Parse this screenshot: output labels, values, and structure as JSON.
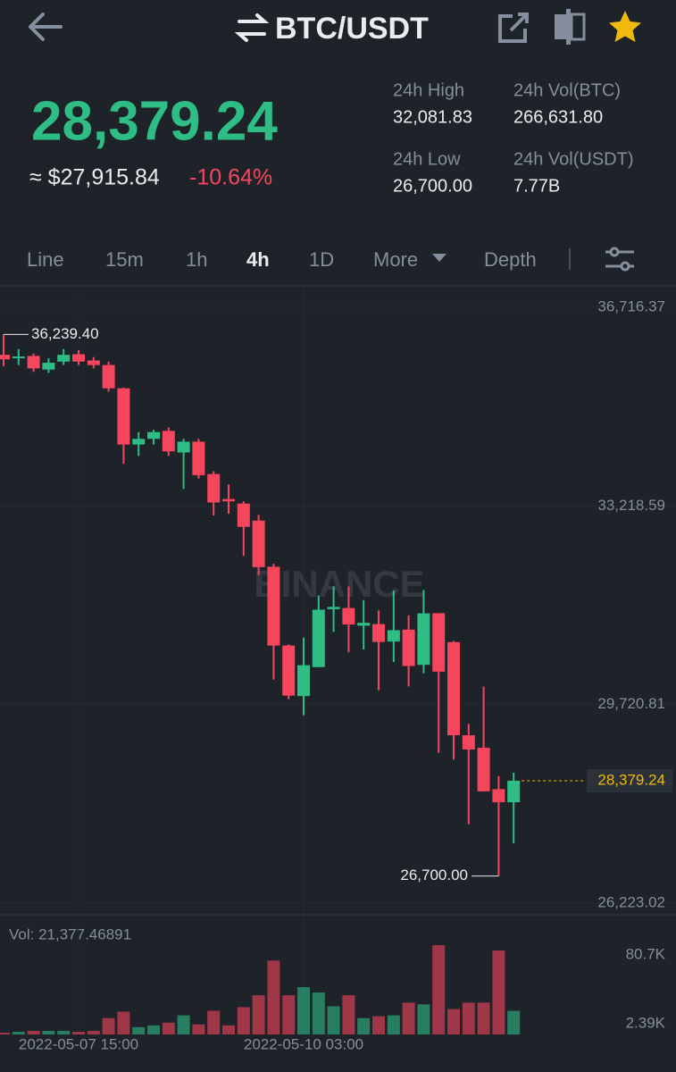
{
  "header": {
    "pair": "BTC/USDT"
  },
  "ticker": {
    "last_price": "28,379.24",
    "fiat_price": "≈ $27,915.84",
    "change": "-10.64%"
  },
  "stats": [
    {
      "label": "24h High",
      "value": "32,081.83"
    },
    {
      "label": "24h Vol(BTC)",
      "value": "266,631.80"
    },
    {
      "label": "24h Low",
      "value": "26,700.00"
    },
    {
      "label": "24h Vol(USDT)",
      "value": "7.77B"
    }
  ],
  "tabs": [
    "Line",
    "15m",
    "1h",
    "4h",
    "1D",
    "More",
    "Depth"
  ],
  "chart_data": {
    "type": "candlestick",
    "watermark": "BINANCE",
    "categories": [
      null,
      null,
      null,
      null,
      null,
      "2022-05-07 15:00",
      null,
      null,
      null,
      null,
      null,
      null,
      null,
      null,
      null,
      null,
      null,
      null,
      null,
      null,
      "2022-05-10 03:00",
      null,
      null,
      null,
      null,
      null,
      null,
      null,
      null,
      null,
      null,
      null,
      null,
      null,
      null
    ],
    "open": [
      35880,
      35820,
      35860,
      35620,
      35760,
      35890,
      35780,
      35700,
      35290,
      34300,
      34400,
      34540,
      34160,
      34350,
      33780,
      33340,
      33260,
      32960,
      32147,
      30760,
      29870,
      30380,
      31400,
      31420,
      31110,
      31138,
      30830,
      31040,
      30420,
      31330,
      30820,
      29180,
      28960,
      28230,
      28000
    ],
    "high": [
      36239.4,
      35980,
      35900,
      35820,
      35980,
      35960,
      35840,
      35760,
      35300,
      34520,
      34560,
      34600,
      34400,
      34400,
      33830,
      33600,
      33300,
      33060,
      32200,
      30780,
      30900,
      31640,
      31800,
      31800,
      31560,
      31380,
      31730,
      31290,
      31737,
      31330,
      30840,
      29380,
      30036,
      28460,
      28520
    ],
    "low": [
      35680,
      35700,
      35580,
      35560,
      35700,
      35700,
      35640,
      35230,
      33960,
      34100,
      34300,
      34100,
      33518,
      33700,
      33050,
      33080,
      32340,
      32000,
      30160,
      29815,
      29532,
      30380,
      31000,
      30640,
      30690,
      29973,
      30470,
      30040,
      30270,
      28870,
      28750,
      27610,
      28192,
      26700,
      27278
    ],
    "close": [
      35800,
      35850,
      35640,
      35740,
      35880,
      35760,
      35700,
      35290,
      34300,
      34400,
      34520,
      34180,
      34350,
      33760,
      33280,
      33300,
      32850,
      32140,
      30760,
      29878,
      30414,
      31391,
      31440,
      31130,
      31160,
      30823,
      31030,
      30400,
      31327,
      30300,
      29180,
      28930,
      28192,
      28000,
      28379.24
    ],
    "up_color": "#2ebd85",
    "down_color": "#f6465d",
    "ylim": [
      26223.02,
      36716.37
    ],
    "yticks": [
      {
        "value": 36716.37,
        "label": "36,716.37"
      },
      {
        "value": 33218.59,
        "label": "33,218.59"
      },
      {
        "value": 29720.81,
        "label": "29,720.81"
      },
      {
        "value": 26223.02,
        "label": "26,223.02"
      }
    ],
    "grid": true,
    "annotations": {
      "high": {
        "value": 36239.4,
        "label": "36,239.40"
      },
      "low": {
        "value": 26700,
        "label": "26,700.00"
      },
      "last": {
        "value": 28379.24,
        "label": "28,379.24",
        "color": "#f0b90b"
      }
    },
    "volume": {
      "label": "Vol: 21,377.46891",
      "values": [
        1600,
        2400,
        3300,
        3300,
        3300,
        2400,
        3300,
        14800,
        20600,
        6600,
        8200,
        10700,
        17300,
        9100,
        21400,
        8200,
        24700,
        35400,
        66700,
        35400,
        42800,
        37900,
        25500,
        35400,
        14800,
        16500,
        17300,
        28800,
        27200,
        80700,
        23000,
        28800,
        28800,
        75800,
        21377.46891
      ],
      "ylim": [
        0,
        80700
      ],
      "yticks": [
        {
          "value": 2390,
          "label": "2.39K"
        },
        {
          "value": 80700,
          "label": "80.7K"
        }
      ]
    }
  }
}
